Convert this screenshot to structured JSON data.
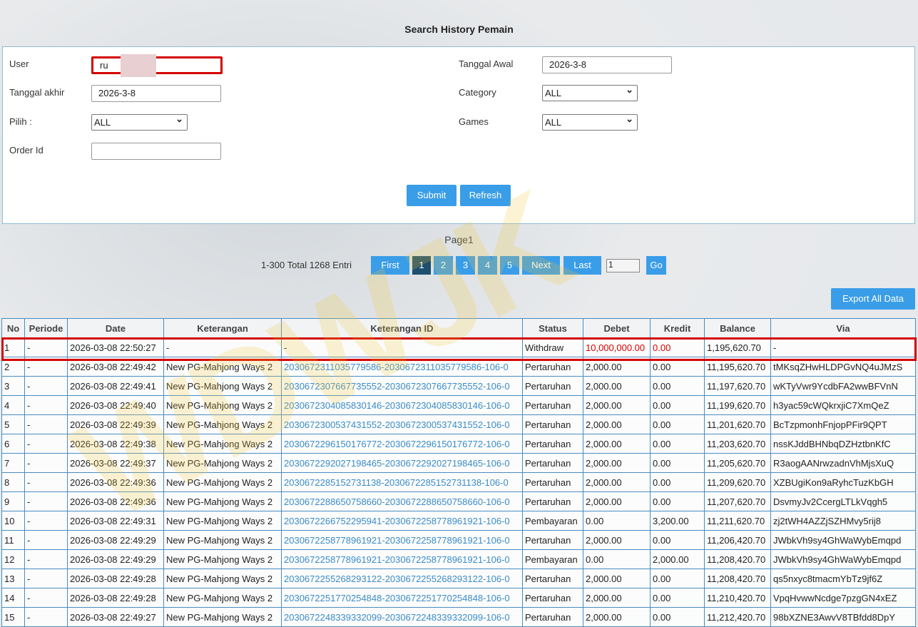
{
  "title": "Search History Pemain",
  "form": {
    "user_label": "User",
    "user_value": "ru",
    "tanggal_awal_label": "Tanggal Awal",
    "tanggal_awal_value": "2026-3-8",
    "tanggal_akhir_label": "Tanggal akhir",
    "tanggal_akhir_value": "2026-3-8",
    "category_label": "Category",
    "category_value": "ALL",
    "pilih_label": "Pilih  :",
    "pilih_value": "ALL",
    "games_label": "Games",
    "games_value": "ALL",
    "order_id_label": "Order Id",
    "order_id_value": "",
    "submit": "Submit",
    "refresh": "Refresh"
  },
  "pagination": {
    "page_label": "Page1",
    "summary": "1-300 Total 1268 Entri",
    "first": "First",
    "pages": [
      "1",
      "2",
      "3",
      "4",
      "5"
    ],
    "next": "Next",
    "last": "Last",
    "page_input": "1",
    "go": "Go",
    "current": "1"
  },
  "export_label": "Export All Data",
  "watermark": "WDWJK",
  "colors": {
    "accent": "#3a9de8",
    "highlight": "#d40000",
    "link": "#3a8cc9"
  },
  "table": {
    "headers": [
      "No",
      "Periode",
      "Date",
      "Keterangan",
      "Keterangan ID",
      "Status",
      "Debet",
      "Kredit",
      "Balance",
      "Via"
    ],
    "rows": [
      [
        "1",
        "-",
        "2026-03-08 22:50:27",
        "-",
        "-",
        "Withdraw",
        "10,000,000.00",
        "0.00",
        "1,195,620.70",
        "-"
      ],
      [
        "2",
        "-",
        "2026-03-08 22:49:42",
        "New PG-Mahjong Ways 2",
        "2030672311035779586-2030672311035779586-106-0",
        "Pertaruhan",
        "2,000.00",
        "0.00",
        "11,195,620.70",
        "tMKsqZHwHLDPGvNQ4uJMzS"
      ],
      [
        "3",
        "-",
        "2026-03-08 22:49:41",
        "New PG-Mahjong Ways 2",
        "2030672307667735552-2030672307667735552-106-0",
        "Pertaruhan",
        "2,000.00",
        "0.00",
        "11,197,620.70",
        "wKTyVwr9YcdbFA2wwBFVnN"
      ],
      [
        "4",
        "-",
        "2026-03-08 22:49:40",
        "New PG-Mahjong Ways 2",
        "2030672304085830146-2030672304085830146-106-0",
        "Pertaruhan",
        "2,000.00",
        "0.00",
        "11,199,620.70",
        "h3yac59cWQkrxjiC7XmQeZ"
      ],
      [
        "5",
        "-",
        "2026-03-08 22:49:39",
        "New PG-Mahjong Ways 2",
        "2030672300537431552-2030672300537431552-106-0",
        "Pertaruhan",
        "2,000.00",
        "0.00",
        "11,201,620.70",
        "BcTzpmonhFnjopPFir9QPT"
      ],
      [
        "6",
        "-",
        "2026-03-08 22:49:38",
        "New PG-Mahjong Ways 2",
        "2030672296150176772-2030672296150176772-106-0",
        "Pertaruhan",
        "2,000.00",
        "0.00",
        "11,203,620.70",
        "nssKJddBHNbqDZHztbnKfC"
      ],
      [
        "7",
        "-",
        "2026-03-08 22:49:37",
        "New PG-Mahjong Ways 2",
        "2030672292027198465-2030672292027198465-106-0",
        "Pertaruhan",
        "2,000.00",
        "0.00",
        "11,205,620.70",
        "R3aogAANrwzadnVhMjsXuQ"
      ],
      [
        "8",
        "-",
        "2026-03-08 22:49:36",
        "New PG-Mahjong Ways 2",
        "2030672285152731138-2030672285152731138-106-0",
        "Pertaruhan",
        "2,000.00",
        "0.00",
        "11,209,620.70",
        "XZBUgiKon9aRyhcTuzKbGH"
      ],
      [
        "9",
        "-",
        "2026-03-08 22:49:36",
        "New PG-Mahjong Ways 2",
        "2030672288650758660-2030672288650758660-106-0",
        "Pertaruhan",
        "2,000.00",
        "0.00",
        "11,207,620.70",
        "DsvmyJv2CcergLTLkVqgh5"
      ],
      [
        "10",
        "-",
        "2026-03-08 22:49:31",
        "New PG-Mahjong Ways 2",
        "2030672266752295941-2030672258778961921-106-0",
        "Pembayaran",
        "0.00",
        "3,200.00",
        "11,211,620.70",
        "zj2tWH4AZZjSZHMvy5rij8"
      ],
      [
        "11",
        "-",
        "2026-03-08 22:49:29",
        "New PG-Mahjong Ways 2",
        "2030672258778961921-2030672258778961921-106-0",
        "Pertaruhan",
        "2,000.00",
        "0.00",
        "11,206,420.70",
        "JWbkVh9sy4GhWaWybEmqpd"
      ],
      [
        "12",
        "-",
        "2026-03-08 22:49:29",
        "New PG-Mahjong Ways 2",
        "2030672258778961921-2030672258778961921-106-0",
        "Pembayaran",
        "0.00",
        "2,000.00",
        "11,208,420.70",
        "JWbkVh9sy4GhWaWybEmqpd"
      ],
      [
        "13",
        "-",
        "2026-03-08 22:49:28",
        "New PG-Mahjong Ways 2",
        "2030672255268293122-2030672255268293122-106-0",
        "Pertaruhan",
        "2,000.00",
        "0.00",
        "11,208,420.70",
        "qs5nxyc8tmacmYbTz9jf6Z"
      ],
      [
        "14",
        "-",
        "2026-03-08 22:49:28",
        "New PG-Mahjong Ways 2",
        "2030672251770254848-2030672251770254848-106-0",
        "Pertaruhan",
        "2,000.00",
        "0.00",
        "11,210,420.70",
        "VpqHvwwNcdge7pzgGN4xEZ"
      ],
      [
        "15",
        "-",
        "2026-03-08 22:49:27",
        "New PG-Mahjong Ways 2",
        "2030672248339332099-2030672248339332099-106-0",
        "Pertaruhan",
        "2,000.00",
        "0.00",
        "11,212,420.70",
        "98bXZNE3AwvV8TBfdd8DpY"
      ]
    ]
  }
}
